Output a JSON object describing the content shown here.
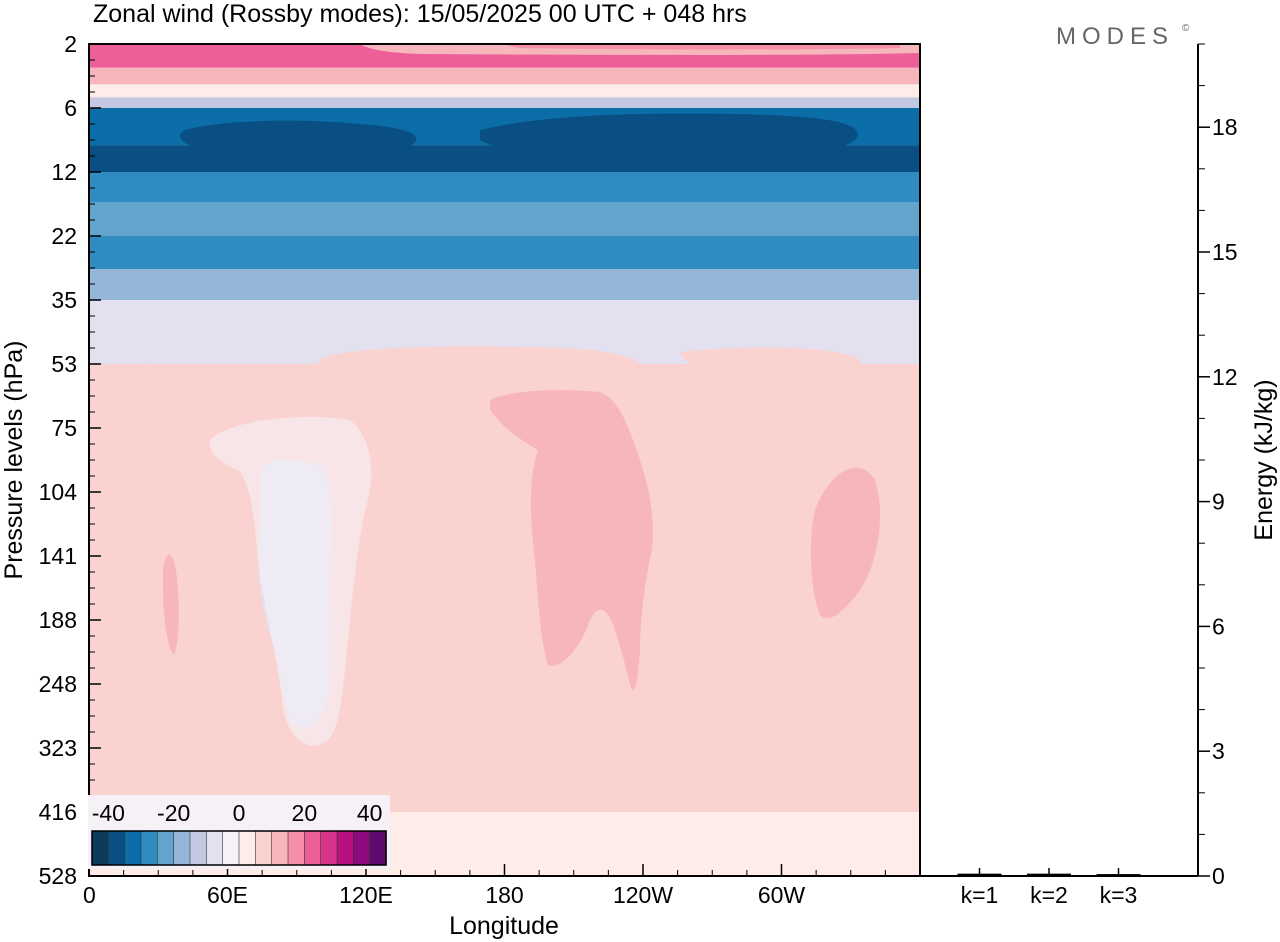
{
  "chart_data": {
    "type": "heatmap",
    "title": "Zonal wind (Rossby modes):  15/05/2025  00 UTC  + 048 hrs",
    "logo": "MODES",
    "logo_mark": "©",
    "xlabel": "Longitude",
    "ylabel": "Pressure levels (hPa)",
    "x_ticks": [
      "0",
      "60E",
      "120E",
      "180",
      "120W",
      "60W"
    ],
    "y_ticks": [
      "2",
      "6",
      "12",
      "22",
      "35",
      "53",
      "75",
      "104",
      "141",
      "188",
      "248",
      "323",
      "416",
      "528"
    ],
    "y_reversed": true,
    "colorbar": {
      "labels": [
        "-40",
        "-20",
        "0",
        "20",
        "40"
      ],
      "levels": [
        -45,
        -40,
        -35,
        -30,
        -25,
        -20,
        -15,
        -10,
        -5,
        0,
        5,
        10,
        15,
        20,
        25,
        30,
        35,
        40,
        45
      ],
      "colors": [
        "#0e3a5c",
        "#094f83",
        "#0b6ea8",
        "#2f8bc0",
        "#63a4cc",
        "#93b6d9",
        "#c3c9e3",
        "#e3e1ef",
        "#f5f1f7",
        "#fdece8",
        "#fad3d0",
        "#f7b5bc",
        "#f48fa7",
        "#ec5f98",
        "#d9348b",
        "#b71181",
        "#8c0a7c",
        "#5e0a6e"
      ]
    },
    "bands": [
      {
        "level": "2",
        "value": 20
      },
      {
        "level": "3",
        "value": 10
      },
      {
        "level": "4",
        "value": 2
      },
      {
        "level": "5",
        "value": -15
      },
      {
        "level": "6",
        "value": -32
      },
      {
        "level": "9",
        "value": -40
      },
      {
        "level": "12",
        "value": -30
      },
      {
        "level": "16",
        "value": -25
      },
      {
        "level": "22",
        "value": -30
      },
      {
        "level": "28",
        "value": -20
      },
      {
        "level": "35",
        "value": -8
      },
      {
        "level": "53",
        "value": 5
      },
      {
        "level": "416",
        "value": 2
      }
    ],
    "energy_panel": {
      "ylabel": "Energy (kJ/kg)",
      "y_ticks": [
        "0",
        "3",
        "6",
        "9",
        "12",
        "15",
        "18"
      ],
      "ylim": [
        0,
        20
      ],
      "categories": [
        "k=1",
        "k=2",
        "k=3"
      ],
      "values": [
        0.02,
        0.02,
        0.01
      ]
    }
  }
}
